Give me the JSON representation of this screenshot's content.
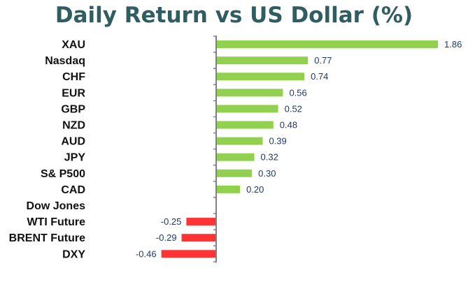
{
  "chart_data": {
    "type": "bar",
    "orientation": "horizontal",
    "title": "Daily Return vs US Dollar (%)",
    "categories": [
      "XAU",
      "Nasdaq",
      "CHF",
      "EUR",
      "GBP",
      "NZD",
      "AUD",
      "JPY",
      "S& P500",
      "CAD",
      "Dow Jones",
      "WTI Future",
      "BRENT Future",
      "DXY"
    ],
    "values": [
      1.86,
      0.77,
      0.74,
      0.56,
      0.52,
      0.48,
      0.39,
      0.32,
      0.3,
      0.2,
      null,
      -0.25,
      -0.29,
      -0.46
    ],
    "value_labels": [
      "1.86",
      "0.77",
      "0.74",
      "0.56",
      "0.52",
      "0.48",
      "0.39",
      "0.32",
      "0.30",
      "0.20",
      "",
      "-0.25",
      "-0.29",
      "-0.46"
    ],
    "xlim": [
      -0.46,
      1.86
    ],
    "grid": false,
    "legend": "none",
    "colors": {
      "positive": "#92d050",
      "negative": "#ff3333",
      "title": "#2f5d62",
      "value_label": "#1f3864",
      "category_label": "#111111",
      "axis": "#808080"
    }
  }
}
